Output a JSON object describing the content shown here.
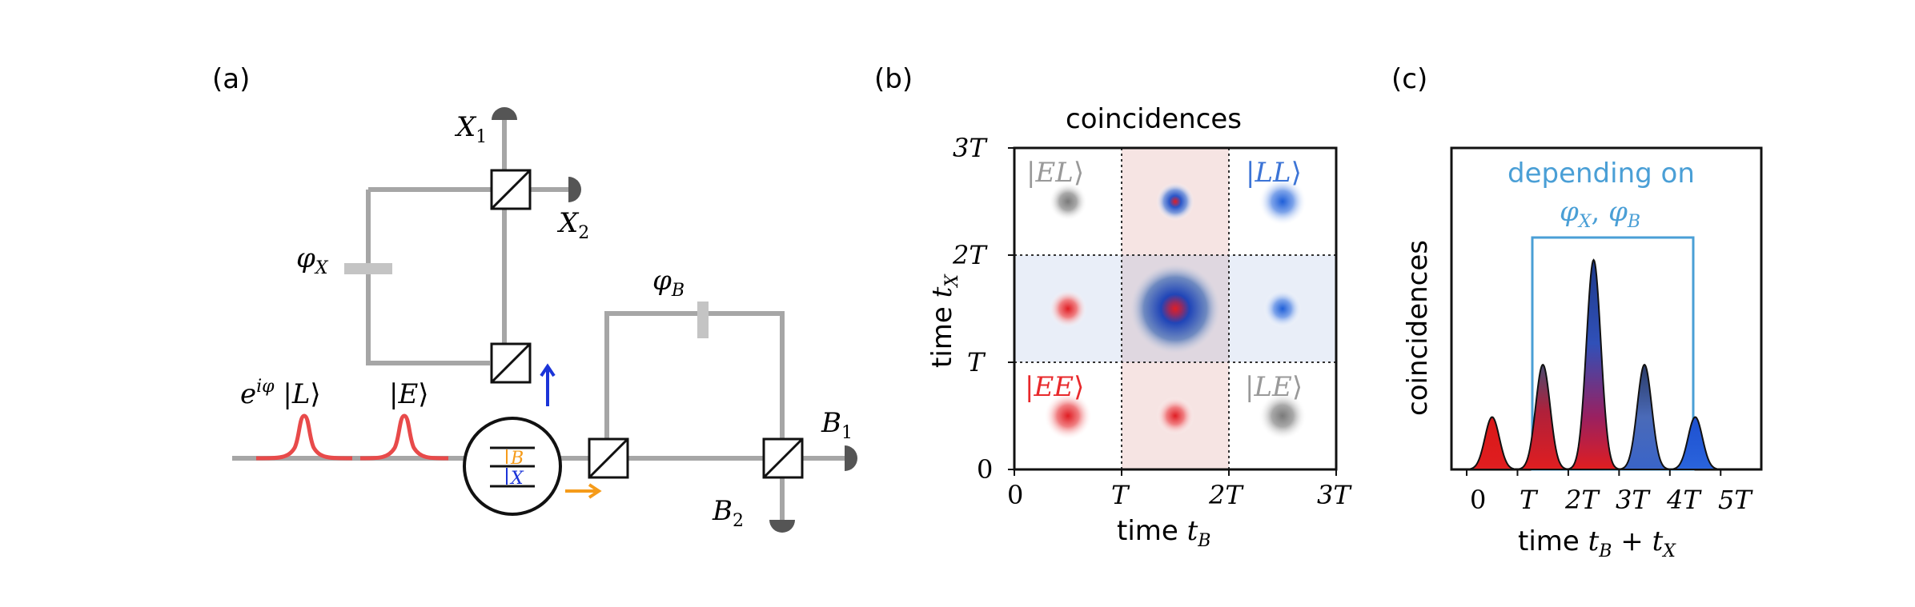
{
  "panel_a": {
    "label": "(a)",
    "phase_x": "φX",
    "phase_b": "φB",
    "detector_x1": "X1",
    "detector_x2": "X2",
    "detector_b1": "B1",
    "detector_b2": "B2",
    "pulse_late": "e^{iφ} |L⟩",
    "pulse_early": "|E⟩",
    "level_b": "B",
    "level_x": "X",
    "colors": {
      "beam": "#a6a6a6",
      "pulse": "#e84a4a",
      "photon_x": "#1b34d8",
      "photon_b": "#f59b1a",
      "detector": "#555555"
    }
  },
  "panel_b": {
    "label": "(b)",
    "title": "coincidences",
    "xlabel": "time t_B",
    "ylabel": "time t_X",
    "ticks": [
      "0",
      "T",
      "2T",
      "3T"
    ],
    "states": {
      "EL": "|EL⟩",
      "LL": "|LL⟩",
      "EE": "|EE⟩",
      "LE": "|LE⟩"
    },
    "colors": {
      "EL": "#999999",
      "LL": "#3c74d6",
      "EE": "#e8282b",
      "LE": "#999999"
    }
  },
  "panel_c": {
    "label": "(c)",
    "ylabel": "coincidences",
    "xlabel": "time t_B + t_X",
    "box_label_1": "depending on",
    "box_label_2": "φX, φB",
    "x_ticks": [
      "0",
      "T",
      "2T",
      "3T",
      "4T",
      "5T"
    ],
    "box_color": "#4a9fd6"
  },
  "chart_data": {
    "type": "bar",
    "categories": [
      "0.5T",
      "1.5T",
      "2.5T",
      "3.5T",
      "4.5T"
    ],
    "values": [
      1,
      2,
      4,
      2,
      1
    ],
    "xlabel": "time t_B + t_X",
    "ylabel": "coincidences",
    "xlim": [
      -0.3,
      5.8
    ]
  }
}
